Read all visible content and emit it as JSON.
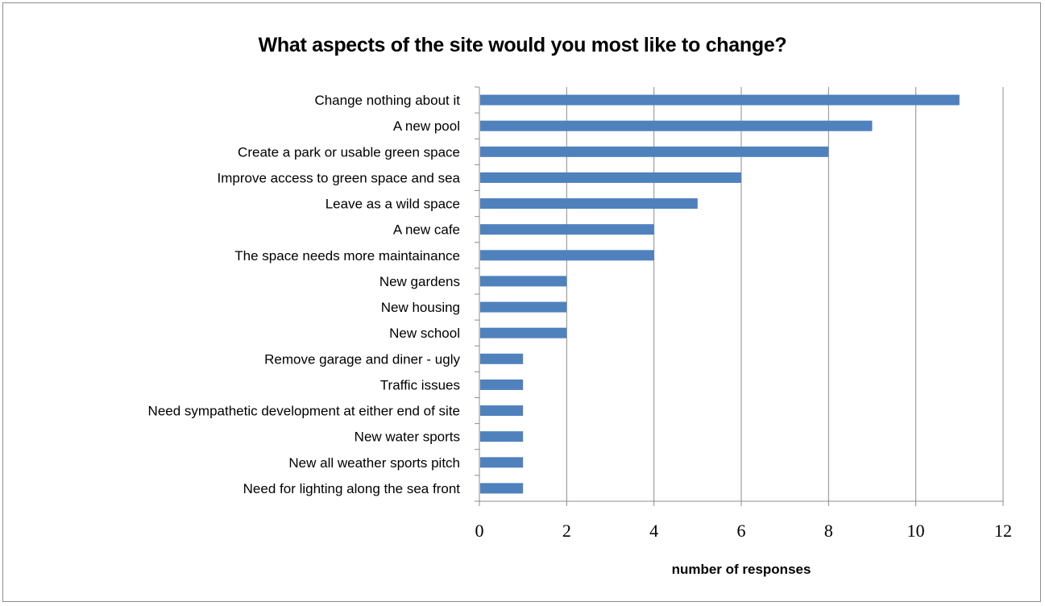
{
  "chart_data": {
    "type": "bar",
    "orientation": "horizontal",
    "title": "What aspects of the site would you most like to change?",
    "xlabel": "number of responses",
    "ylabel": "",
    "xlim": [
      0,
      12
    ],
    "xticks": [
      0,
      2,
      4,
      6,
      8,
      10,
      12
    ],
    "grid": "vertical",
    "legend": "none",
    "bar_color": "#4f81bd",
    "categories": [
      "Change nothing about it",
      "A new pool",
      "Create a park or usable green space",
      "Improve access to green space and sea",
      "Leave as a wild space",
      "A new cafe",
      "The space needs more maintainance",
      "New gardens",
      "New housing",
      "New school",
      "Remove garage and diner - ugly",
      "Traffic issues",
      "Need sympathetic development at either end of site",
      "New water sports",
      "New all weather sports pitch",
      "Need for lighting along the sea front"
    ],
    "values": [
      11,
      9,
      8,
      6,
      5,
      4,
      4,
      2,
      2,
      2,
      1,
      1,
      1,
      1,
      1,
      1
    ]
  }
}
